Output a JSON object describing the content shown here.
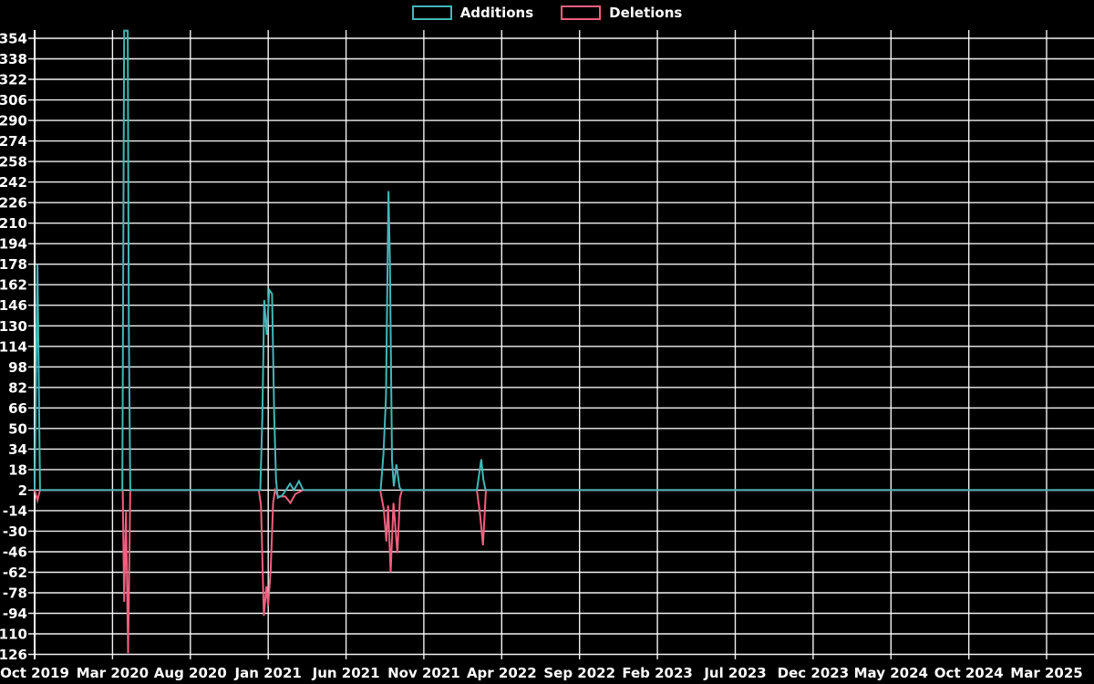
{
  "legend": {
    "items": [
      {
        "label": "Additions",
        "color": "#43b7b7"
      },
      {
        "label": "Deletions",
        "color": "#f15f7f"
      }
    ]
  },
  "chart_data": {
    "type": "line",
    "title": "",
    "xlabel": "",
    "ylabel": "",
    "background_color": "#000000",
    "grid": true,
    "grid_color": "#ffffff",
    "text_color": "#ffffff",
    "legend_position": "top-center",
    "x_unit": "weeks since Oct 2019",
    "baseline_value": 2,
    "ylim": [
      -126,
      354
    ],
    "y_ticks": [
      354,
      338,
      322,
      306,
      290,
      274,
      258,
      242,
      226,
      210,
      194,
      178,
      162,
      146,
      130,
      114,
      98,
      82,
      66,
      50,
      34,
      18,
      2,
      -14,
      -30,
      -46,
      -62,
      -78,
      -94,
      -110,
      -126
    ],
    "x_ticks": [
      {
        "label": "Oct 2019",
        "month": 0
      },
      {
        "label": "Mar 2020",
        "month": 5
      },
      {
        "label": "Aug 2020",
        "month": 10
      },
      {
        "label": "Jan 2021",
        "month": 15
      },
      {
        "label": "Jun 2021",
        "month": 20
      },
      {
        "label": "Nov 2021",
        "month": 25
      },
      {
        "label": "Apr 2022",
        "month": 30
      },
      {
        "label": "Sep 2022",
        "month": 35
      },
      {
        "label": "Feb 2023",
        "month": 40
      },
      {
        "label": "Jul 2023",
        "month": 45
      },
      {
        "label": "Dec 2023",
        "month": 50
      },
      {
        "label": "May 2024",
        "month": 55
      },
      {
        "label": "Oct 2024",
        "month": 60
      },
      {
        "label": "Mar 2025",
        "month": 65
      }
    ],
    "series": [
      {
        "name": "Additions",
        "color": "#43b7b7",
        "clipped_at_top": true,
        "points": [
          [
            0,
            2
          ],
          [
            0.8,
            178
          ],
          [
            1.5,
            2
          ],
          [
            24.5,
            2
          ],
          [
            25,
            360
          ],
          [
            26,
            360
          ],
          [
            26.3,
            130
          ],
          [
            26.7,
            2
          ],
          [
            63,
            2
          ],
          [
            63.6,
            60
          ],
          [
            64.1,
            150
          ],
          [
            64.8,
            123
          ],
          [
            65.5,
            158
          ],
          [
            66.3,
            155
          ],
          [
            66.9,
            60
          ],
          [
            67.4,
            10
          ],
          [
            67.9,
            -4
          ],
          [
            69.2,
            -2
          ],
          [
            71.3,
            7
          ],
          [
            72.4,
            2
          ],
          [
            73.8,
            9
          ],
          [
            75,
            2
          ],
          [
            96.6,
            2
          ],
          [
            97.4,
            30
          ],
          [
            98.1,
            75
          ],
          [
            98.8,
            235
          ],
          [
            99.2,
            180
          ],
          [
            99.8,
            25
          ],
          [
            100.3,
            5
          ],
          [
            101,
            22
          ],
          [
            101.9,
            4
          ],
          [
            102.5,
            2
          ],
          [
            123.5,
            2
          ],
          [
            124.7,
            26
          ],
          [
            125.3,
            10
          ],
          [
            125.9,
            2
          ],
          [
            296,
            2
          ]
        ]
      },
      {
        "name": "Deletions",
        "color": "#f15f7f",
        "points": [
          [
            0,
            2
          ],
          [
            0.8,
            -6
          ],
          [
            1.5,
            2
          ],
          [
            24.6,
            2
          ],
          [
            25,
            -85
          ],
          [
            25.5,
            -15
          ],
          [
            26.1,
            -125
          ],
          [
            26.7,
            2
          ],
          [
            62.6,
            2
          ],
          [
            63.2,
            -10
          ],
          [
            64,
            -96
          ],
          [
            64.7,
            -73
          ],
          [
            65.2,
            -88
          ],
          [
            65.9,
            -60
          ],
          [
            66.6,
            -8
          ],
          [
            67.1,
            2
          ],
          [
            68,
            -3
          ],
          [
            70,
            -3
          ],
          [
            71.4,
            -8
          ],
          [
            72.8,
            -1
          ],
          [
            75,
            2
          ],
          [
            96.5,
            2
          ],
          [
            97.5,
            -13
          ],
          [
            98.2,
            -38
          ],
          [
            98.7,
            -10
          ],
          [
            99.4,
            -62
          ],
          [
            100.2,
            -8
          ],
          [
            101.3,
            -47
          ],
          [
            102,
            -4
          ],
          [
            102.6,
            2
          ],
          [
            123.5,
            2
          ],
          [
            124.4,
            -18
          ],
          [
            125.2,
            -41
          ],
          [
            126,
            2
          ],
          [
            296,
            2
          ]
        ]
      }
    ]
  }
}
